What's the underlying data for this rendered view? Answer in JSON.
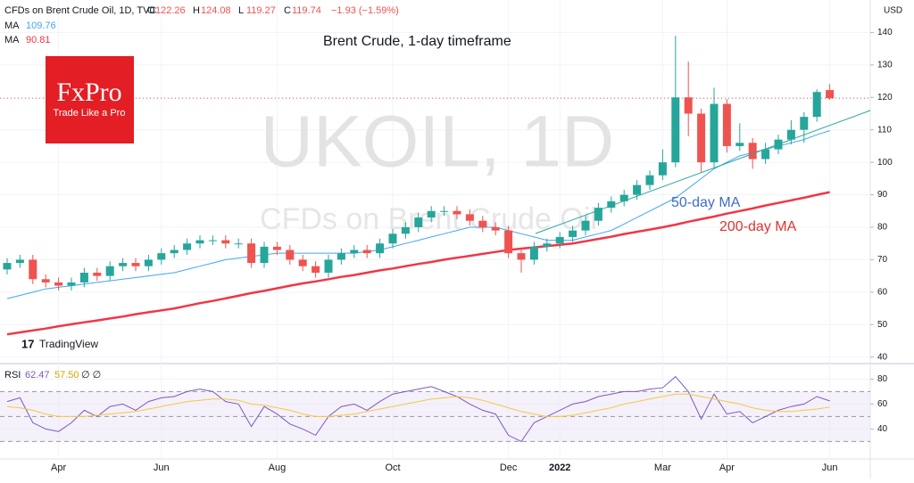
{
  "chart_data": [
    {
      "type": "candlestick",
      "title": "Brent Crude, 1-day timeframe",
      "header": "CFDs on Brent Crude Oil, 1D, TVC",
      "ohlc_labels": [
        "O",
        "H",
        "L",
        "C"
      ],
      "change": "−1.93 (−1.59%)",
      "watermark": "UKOIL, 1D",
      "watermark_sub": "CFDs on Brent Crude Oil",
      "y_unit": "USD",
      "logo": "FxPro",
      "logo_tagline": "Trade Like a Pro",
      "credit": "TradingView",
      "categories": [
        null,
        null,
        null,
        null,
        "Apr",
        null,
        null,
        null,
        null,
        null,
        null,
        null,
        "Jun",
        null,
        null,
        null,
        null,
        null,
        null,
        null,
        null,
        "Aug",
        null,
        null,
        null,
        null,
        null,
        null,
        null,
        null,
        "Oct",
        null,
        null,
        null,
        null,
        null,
        null,
        null,
        null,
        "Dec",
        null,
        null,
        null,
        "2022",
        null,
        null,
        null,
        null,
        null,
        null,
        null,
        "Mar",
        null,
        null,
        null,
        null,
        "Apr",
        null,
        null,
        null,
        null,
        null,
        null,
        null,
        "Jun"
      ],
      "open": [
        67,
        69,
        70,
        64,
        63,
        62,
        63,
        66,
        65,
        68,
        69,
        68,
        70,
        72,
        73,
        75,
        76,
        76,
        75,
        75,
        69,
        74,
        73,
        70,
        68,
        66,
        70,
        72,
        73,
        72,
        75,
        78,
        80,
        83,
        85,
        85,
        84,
        82,
        80,
        79,
        72,
        70,
        74,
        75,
        77,
        79,
        82,
        86,
        88,
        90,
        93,
        96,
        100,
        120,
        115,
        100,
        118,
        105,
        106,
        101,
        104,
        107,
        110,
        114,
        122.26
      ],
      "high": [
        70.5,
        71.5,
        71.5,
        65.5,
        64.5,
        64.5,
        67.5,
        67.5,
        69.5,
        70.5,
        70.5,
        71.5,
        73.5,
        74.5,
        76.5,
        77.5,
        77.5,
        77.5,
        76.5,
        76.5,
        75.5,
        75.5,
        74.5,
        71.5,
        69.5,
        71.5,
        73.5,
        74.5,
        74.5,
        76.5,
        79.5,
        81.5,
        84.5,
        86.5,
        86.5,
        86.5,
        85.5,
        83.5,
        81.5,
        80.5,
        73.5,
        75.5,
        76.5,
        78.5,
        80.5,
        83.5,
        87.5,
        89.5,
        91.5,
        94.5,
        97.5,
        104,
        139,
        131,
        116.5,
        123,
        119.5,
        112,
        107.5,
        106,
        108.5,
        113,
        115.5,
        122.5,
        124.08
      ],
      "low": [
        65.5,
        67.5,
        62.5,
        61.5,
        60.5,
        60.5,
        61.5,
        63.5,
        63.5,
        66.5,
        66.5,
        66.5,
        68.5,
        70.5,
        71.5,
        73.5,
        74.5,
        73.5,
        73.5,
        67.5,
        67.5,
        71.5,
        68.5,
        66.5,
        64.5,
        64.5,
        68.5,
        70.5,
        70.5,
        70.5,
        73.5,
        76.5,
        78.5,
        81.5,
        83.5,
        82.5,
        80.5,
        78.5,
        77.5,
        70.5,
        66,
        68.5,
        72.5,
        73.5,
        75.5,
        77.5,
        80.5,
        84.5,
        86.5,
        88.5,
        91.5,
        94.5,
        98.5,
        108,
        97,
        98.5,
        103,
        103.5,
        98,
        99.5,
        102.5,
        105.5,
        106,
        112.5,
        119.27
      ],
      "close": [
        69,
        70,
        64,
        63,
        62,
        63,
        66,
        65,
        68,
        69,
        68,
        70,
        72,
        73,
        75,
        76,
        76,
        75,
        75,
        69,
        74,
        73,
        70,
        68,
        66,
        70,
        72,
        73,
        72,
        75,
        78,
        80,
        83,
        85,
        85,
        84,
        82,
        80,
        79,
        72,
        70,
        74,
        75,
        77,
        79,
        82,
        86,
        88,
        90,
        93,
        96,
        100,
        120,
        115,
        100,
        118,
        105,
        106,
        101,
        104,
        107,
        110,
        114,
        121.67,
        119.74
      ],
      "up_color": "#26a69a",
      "down_color": "#ef5350",
      "series": [
        {
          "name": "MA",
          "color": "#42a5f5",
          "width": 1,
          "values": [
            58,
            59,
            60,
            61,
            61.5,
            62,
            62.5,
            63,
            63.5,
            64,
            64.5,
            65,
            65.5,
            66,
            67,
            68,
            69,
            70,
            70.5,
            71,
            71.5,
            72,
            72,
            72,
            72,
            72,
            72,
            72,
            72.5,
            73,
            74,
            75,
            76,
            77,
            78,
            79,
            80,
            80,
            80,
            79,
            78,
            77,
            76,
            76,
            76,
            77,
            78,
            79,
            81,
            83,
            85,
            87,
            89,
            92,
            95,
            98,
            100,
            102,
            103,
            104,
            105,
            106,
            107,
            108.5,
            109.76
          ]
        },
        {
          "name": "MA",
          "color": "#f23645",
          "width": 2.5,
          "values": [
            47,
            47.6,
            48.2,
            48.8,
            49.5,
            50.1,
            50.7,
            51.3,
            51.9,
            52.5,
            53.2,
            53.8,
            54.4,
            55,
            55.8,
            56.6,
            57.3,
            58.1,
            58.9,
            59.7,
            60.4,
            61.2,
            62,
            62.7,
            63.3,
            64,
            64.7,
            65.3,
            66,
            66.7,
            67.3,
            68,
            68.7,
            69.3,
            70,
            70.6,
            71.2,
            71.8,
            72.4,
            73,
            73.4,
            73.8,
            74.2,
            74.6,
            75,
            75.7,
            76.4,
            77.1,
            77.9,
            78.6,
            79.3,
            80,
            80.8,
            81.7,
            82.5,
            83.3,
            84.2,
            85,
            85.8,
            86.7,
            87.5,
            88.3,
            89.1,
            90,
            90.81
          ]
        }
      ],
      "annotations": [
        {
          "text": "50-day MA",
          "color": "#3f6ec9"
        },
        {
          "text": "200-day MA",
          "color": "#e5312f"
        }
      ],
      "ylim": [
        38,
        150
      ],
      "yticks": [
        40,
        50,
        60,
        70,
        80,
        90,
        100,
        110,
        120,
        130,
        140
      ],
      "grid": true
    },
    {
      "type": "line",
      "rsi_params": "∅ ∅",
      "ylim": [
        16,
        91
      ],
      "yticks": [
        40,
        60,
        80
      ],
      "levels": [
        30,
        50,
        70
      ],
      "band_color": "#ede7f6",
      "series": [
        {
          "name": "RSI",
          "color": "#7e57c2",
          "values": [
            62,
            65,
            45,
            40,
            38,
            45,
            55,
            50,
            58,
            60,
            55,
            62,
            65,
            66,
            70,
            72,
            70,
            62,
            60,
            42,
            58,
            52,
            44,
            40,
            35,
            50,
            58,
            60,
            55,
            62,
            68,
            70,
            72,
            74,
            70,
            66,
            60,
            55,
            52,
            35,
            30,
            45,
            50,
            55,
            60,
            62,
            66,
            68,
            70,
            70,
            72,
            73,
            82,
            70,
            48,
            68,
            52,
            54,
            45,
            50,
            55,
            58,
            60,
            66,
            62.47
          ]
        },
        {
          "color": "#f5c842",
          "values": [
            58,
            57,
            55,
            52,
            50,
            50,
            50,
            51,
            52,
            53,
            54,
            56,
            58,
            60,
            62,
            63,
            64,
            64,
            63,
            60,
            59,
            57,
            55,
            52,
            50,
            50,
            51,
            52,
            54,
            56,
            58,
            60,
            62,
            64,
            65,
            66,
            65,
            63,
            60,
            57,
            54,
            52,
            50,
            50,
            51,
            53,
            55,
            57,
            60,
            62,
            64,
            66,
            68,
            68,
            66,
            64,
            62,
            60,
            57,
            55,
            54,
            54,
            55,
            56,
            57.5
          ],
          "value_labels": [
            null,
            null,
            null,
            null,
            null,
            null,
            null,
            null,
            null,
            null,
            null,
            null,
            null,
            null,
            null,
            null,
            null,
            null,
            null,
            null,
            null,
            null,
            null,
            null,
            null,
            null,
            null,
            null,
            null,
            null,
            null,
            null,
            null,
            null,
            null,
            null,
            null,
            null,
            null,
            null,
            null,
            null,
            null,
            null,
            null,
            null,
            null,
            null,
            null,
            null,
            null,
            null,
            null,
            null,
            null,
            null,
            null,
            null,
            null,
            null,
            null,
            null,
            null,
            null,
            "57.50"
          ]
        }
      ]
    }
  ]
}
